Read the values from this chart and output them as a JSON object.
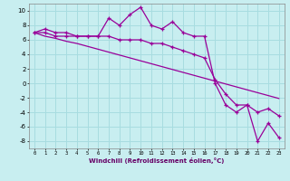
{
  "xlabel": "Windchill (Refroidissement éolien,°C)",
  "ylabel": "",
  "background_color": "#c8eef0",
  "grid_color": "#a8dce0",
  "line_color": "#990099",
  "x_values": [
    0,
    1,
    2,
    3,
    4,
    5,
    6,
    7,
    8,
    9,
    10,
    11,
    12,
    13,
    14,
    15,
    16,
    17,
    18,
    19,
    20,
    21,
    22,
    23
  ],
  "line1": [
    7.0,
    7.5,
    7.0,
    7.0,
    6.5,
    6.5,
    6.5,
    9.0,
    8.0,
    9.5,
    10.5,
    8.0,
    7.5,
    8.5,
    7.0,
    6.5,
    6.5,
    0.0,
    -3.0,
    -4.0,
    -3.0,
    -8.0,
    -5.5,
    -7.5
  ],
  "line2": [
    7.0,
    7.0,
    6.5,
    6.5,
    6.5,
    6.5,
    6.5,
    6.5,
    6.0,
    6.0,
    6.0,
    5.5,
    5.5,
    5.0,
    4.5,
    4.0,
    3.5,
    0.5,
    -1.5,
    -3.0,
    -3.0,
    -4.0,
    -3.5,
    -4.5
  ],
  "line3": [
    7.0,
    6.5,
    6.2,
    5.8,
    5.5,
    5.1,
    4.7,
    4.3,
    3.9,
    3.5,
    3.1,
    2.7,
    2.3,
    1.9,
    1.5,
    1.1,
    0.7,
    0.3,
    -0.1,
    -0.5,
    -0.9,
    -1.3,
    -1.7,
    -2.1
  ],
  "ylim": [
    -9,
    11
  ],
  "xlim": [
    -0.5,
    23.5
  ],
  "yticks": [
    -8,
    -6,
    -4,
    -2,
    0,
    2,
    4,
    6,
    8,
    10
  ],
  "xticks": [
    0,
    1,
    2,
    3,
    4,
    5,
    6,
    7,
    8,
    9,
    10,
    11,
    12,
    13,
    14,
    15,
    16,
    17,
    18,
    19,
    20,
    21,
    22,
    23
  ]
}
